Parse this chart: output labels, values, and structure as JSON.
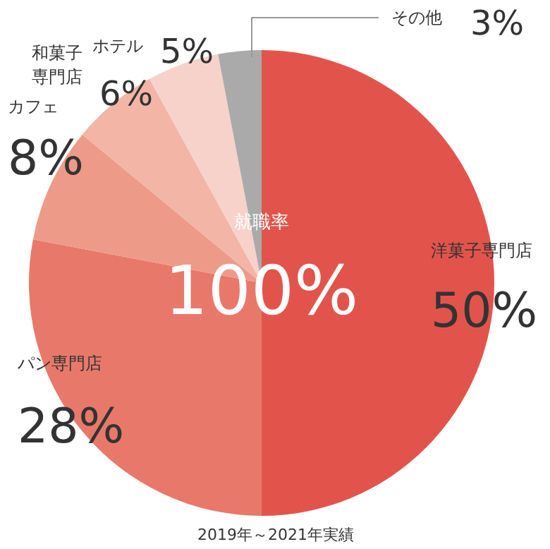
{
  "chart_data": {
    "type": "pie",
    "categories": [
      "洋菓子専門店",
      "パン専門店",
      "カフェ",
      "和菓子専門店",
      "ホテル",
      "その他"
    ],
    "values": [
      50,
      28,
      8,
      6,
      5,
      3
    ],
    "value_labels": [
      "50%",
      "28%",
      "8%",
      "6%",
      "5%",
      "3%"
    ],
    "colors": [
      "#e2544b",
      "#e8796a",
      "#ee9a88",
      "#f2b5a6",
      "#f7d2ca",
      "#aaaaaa"
    ],
    "annotations": [
      "就職率",
      "100%",
      "2019年～2021年実績"
    ]
  }
}
